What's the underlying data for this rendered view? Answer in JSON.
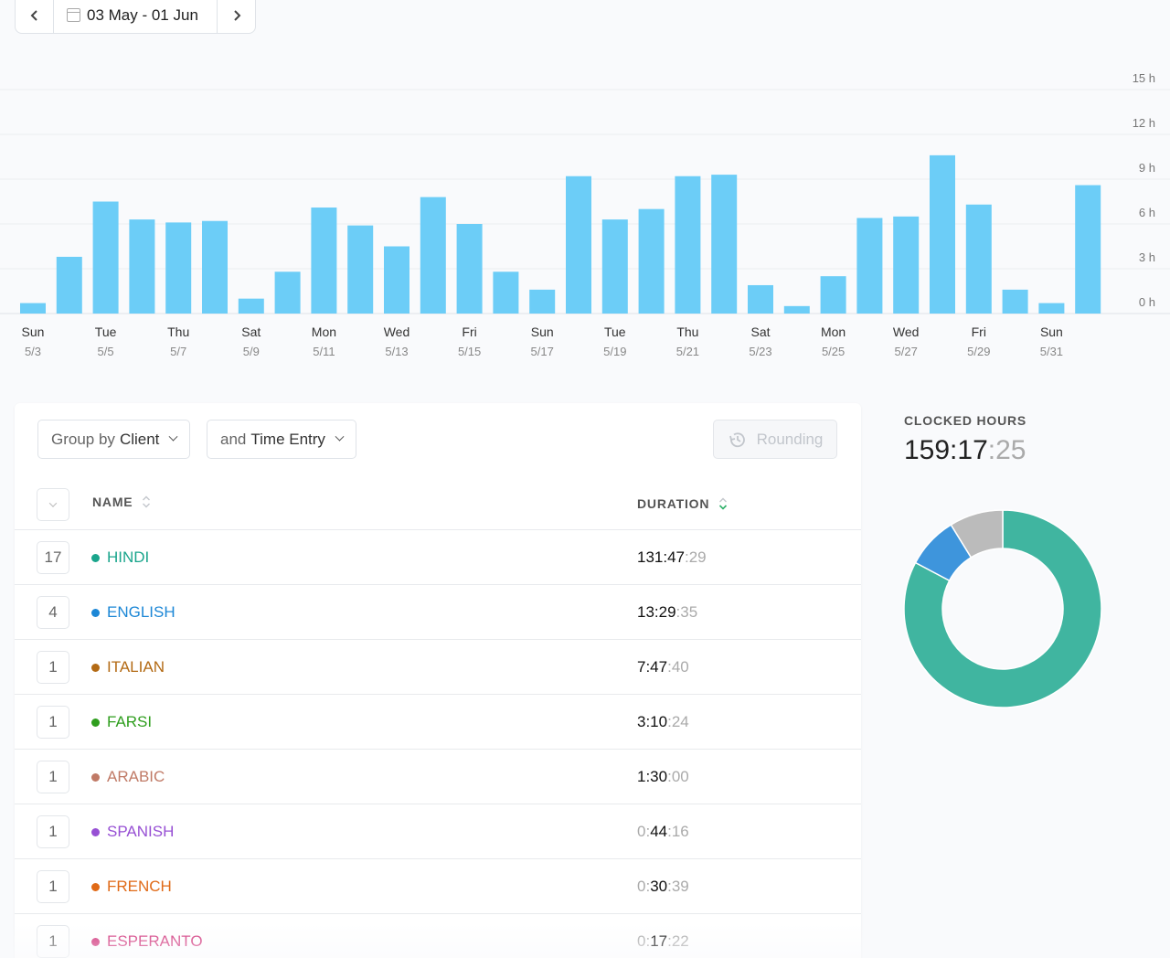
{
  "date_range": {
    "label": "03 May - 01 Jun"
  },
  "chart_data": {
    "type": "bar",
    "categories": [
      "5/3",
      "5/4",
      "5/5",
      "5/6",
      "5/7",
      "5/8",
      "5/9",
      "5/10",
      "5/11",
      "5/12",
      "5/13",
      "5/14",
      "5/15",
      "5/16",
      "5/17",
      "5/18",
      "5/19",
      "5/20",
      "5/21",
      "5/22",
      "5/23",
      "5/24",
      "5/25",
      "5/26",
      "5/27",
      "5/28",
      "5/29",
      "5/30",
      "5/31",
      "6/1"
    ],
    "values": [
      0.7,
      3.8,
      7.5,
      6.3,
      6.1,
      6.2,
      1.0,
      2.8,
      7.1,
      5.9,
      4.5,
      7.8,
      6.0,
      2.8,
      1.6,
      9.2,
      6.3,
      7.0,
      9.2,
      9.3,
      1.9,
      0.5,
      2.5,
      6.4,
      6.5,
      10.6,
      7.3,
      1.6,
      0.7,
      8.6
    ],
    "x_tick_labels": [
      {
        "day": "Sun",
        "date": "5/3"
      },
      {
        "day": "Tue",
        "date": "5/5"
      },
      {
        "day": "Thu",
        "date": "5/7"
      },
      {
        "day": "Sat",
        "date": "5/9"
      },
      {
        "day": "Mon",
        "date": "5/11"
      },
      {
        "day": "Wed",
        "date": "5/13"
      },
      {
        "day": "Fri",
        "date": "5/15"
      },
      {
        "day": "Sun",
        "date": "5/17"
      },
      {
        "day": "Tue",
        "date": "5/19"
      },
      {
        "day": "Thu",
        "date": "5/21"
      },
      {
        "day": "Sat",
        "date": "5/23"
      },
      {
        "day": "Mon",
        "date": "5/25"
      },
      {
        "day": "Wed",
        "date": "5/27"
      },
      {
        "day": "Fri",
        "date": "5/29"
      },
      {
        "day": "Sun",
        "date": "5/31"
      }
    ],
    "y_ticks": [
      0,
      3,
      6,
      9,
      12,
      15
    ],
    "y_tick_labels": [
      "0 h",
      "3 h",
      "6 h",
      "9 h",
      "12 h",
      "15 h"
    ],
    "ylim": [
      0,
      15
    ],
    "y_axis_position": "right",
    "grid": true,
    "bar_color": "#6ccdf7"
  },
  "controls": {
    "group_prefix": "Group by",
    "group_value": "Client",
    "subgroup_prefix": "and",
    "subgroup_value": "Time Entry",
    "rounding_label": "Rounding"
  },
  "table": {
    "columns": {
      "name": "NAME",
      "duration": "DURATION"
    },
    "rows": [
      {
        "count": "17",
        "client": "HINDI",
        "color": "#1aa58c",
        "dur_main_dim": "",
        "dur_main": "131:47",
        "dur_sec": ":29"
      },
      {
        "count": "4",
        "client": "ENGLISH",
        "color": "#1c87d6",
        "dur_main_dim": "",
        "dur_main": "13:29",
        "dur_sec": ":35"
      },
      {
        "count": "1",
        "client": "ITALIAN",
        "color": "#b36a14",
        "dur_main_dim": "",
        "dur_main": "7:47",
        "dur_sec": ":40"
      },
      {
        "count": "1",
        "client": "FARSI",
        "color": "#2f9e1e",
        "dur_main_dim": "",
        "dur_main": "3:10",
        "dur_sec": ":24"
      },
      {
        "count": "1",
        "client": "ARABIC",
        "color": "#c07a66",
        "dur_main_dim": "",
        "dur_main": "1:30",
        "dur_sec": ":00"
      },
      {
        "count": "1",
        "client": "SPANISH",
        "color": "#9750d4",
        "dur_main_dim": "0:",
        "dur_main": "44",
        "dur_sec": ":16"
      },
      {
        "count": "1",
        "client": "FRENCH",
        "color": "#e06a17",
        "dur_main_dim": "0:",
        "dur_main": "30",
        "dur_sec": ":39"
      },
      {
        "count": "1",
        "client": "ESPERANTO",
        "color": "#d12f78",
        "dur_main_dim": "0:",
        "dur_main": "17",
        "dur_sec": ":22"
      }
    ]
  },
  "summary": {
    "label": "CLOCKED HOURS",
    "value_main": "159:17",
    "value_sec": ":25"
  },
  "donut_data": {
    "slices": [
      {
        "name": "HINDI",
        "value": 131.79,
        "color": "#40b5a0"
      },
      {
        "name": "ENGLISH",
        "value": 13.49,
        "color": "#3e95dc"
      },
      {
        "name": "other",
        "value": 14.0,
        "color": "#bbbbbb"
      }
    ]
  }
}
